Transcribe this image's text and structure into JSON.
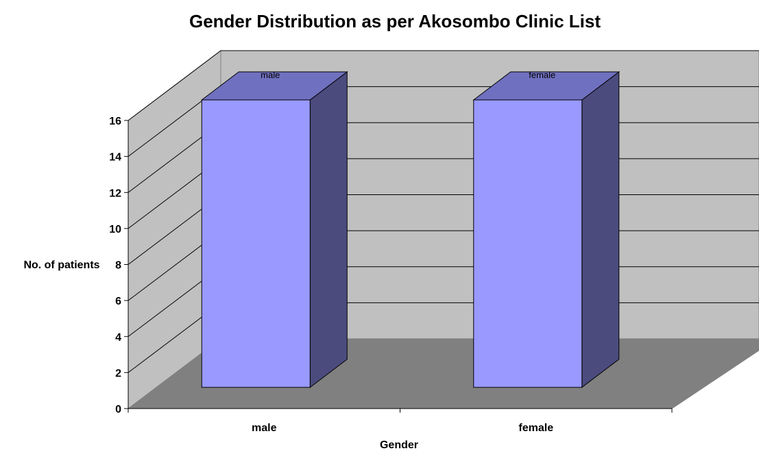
{
  "colors": {
    "back_wall": "#c0c0c0",
    "side_wall": "#c0c0c0",
    "floor": "#808080",
    "bar_front": "#9999ff",
    "bar_top": "#7070c0",
    "bar_side": "#4b4b7e",
    "gridline": "#000000"
  },
  "chart_data": {
    "type": "bar",
    "title": "Gender Distribution as per Akosombo Clinic List",
    "xlabel": "Gender",
    "ylabel": "No. of patients",
    "categories": [
      "male",
      "female"
    ],
    "values": [
      16,
      16
    ],
    "data_labels": [
      "male",
      "female"
    ],
    "ylim": [
      0,
      16
    ],
    "yticks": [
      0,
      2,
      4,
      6,
      8,
      10,
      12,
      14,
      16
    ],
    "grid": true,
    "legend": "none",
    "style": "3d-column"
  }
}
